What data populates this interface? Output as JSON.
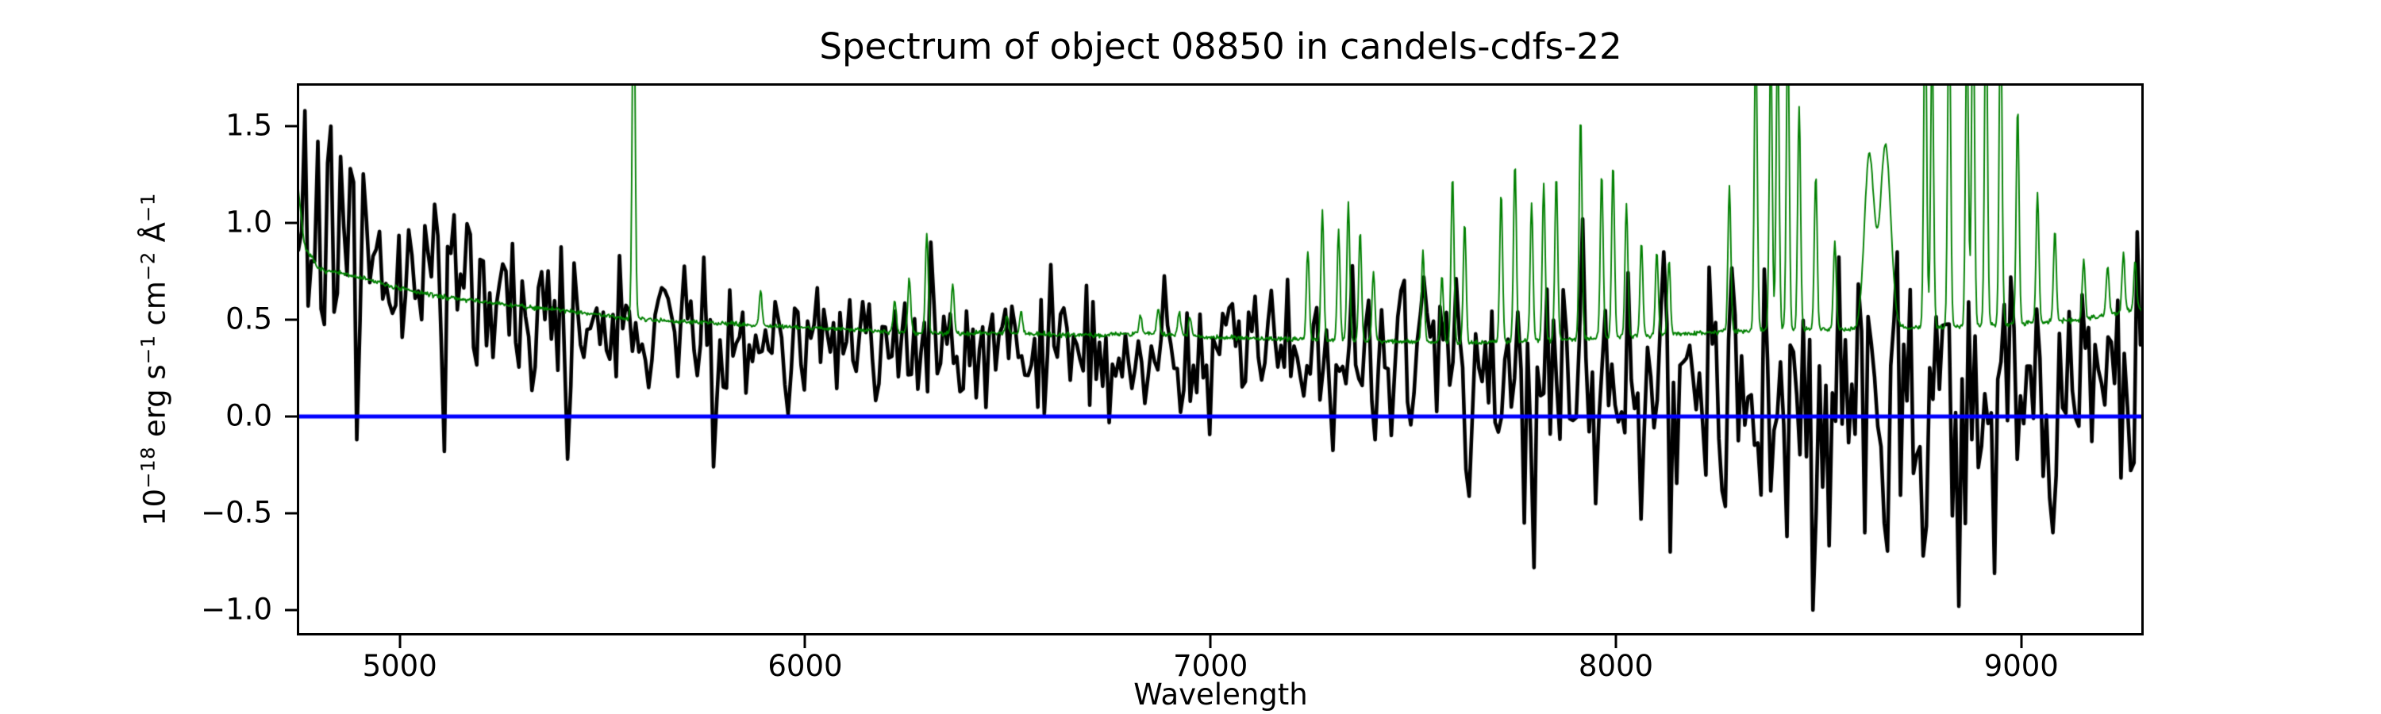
{
  "figure": {
    "background": "#ffffff",
    "title": "Spectrum of object 08850 in candels-cdfs-22"
  },
  "chart_data": {
    "type": "line",
    "title": "Spectrum of object 08850 in candels-cdfs-22",
    "xlabel": "Wavelength",
    "ylabel": "10⁻¹⁸ erg s⁻¹ cm⁻² Å⁻¹",
    "ylabel_parts": [
      {
        "text": "10",
        "sup": false
      },
      {
        "text": "−18",
        "sup": true
      },
      {
        "text": " erg s",
        "sup": false
      },
      {
        "text": "−1",
        "sup": true
      },
      {
        "text": " cm",
        "sup": false
      },
      {
        "text": "−2",
        "sup": true
      },
      {
        "text": " Å",
        "sup": false
      },
      {
        "text": "−1",
        "sup": true
      }
    ],
    "xlim": [
      4750,
      9300
    ],
    "ylim": [
      -1.127,
      1.713
    ],
    "grid": false,
    "legend": null,
    "xticks": [
      {
        "value": 5000,
        "label": "5000"
      },
      {
        "value": 6000,
        "label": "6000"
      },
      {
        "value": 7000,
        "label": "7000"
      },
      {
        "value": 8000,
        "label": "8000"
      },
      {
        "value": 9000,
        "label": "9000"
      }
    ],
    "yticks": [
      {
        "value": -1.0,
        "label": "−1.0"
      },
      {
        "value": -0.5,
        "label": "−0.5"
      },
      {
        "value": 0.0,
        "label": "0.0"
      },
      {
        "value": 0.5,
        "label": "0.5"
      },
      {
        "value": 1.0,
        "label": "1.0"
      },
      {
        "value": 1.5,
        "label": "1.5"
      }
    ],
    "series": [
      {
        "name": "object flux spectrum",
        "style": "noisy-line",
        "color": "#000000",
        "linewidth": 4.6,
        "sample_step": 8,
        "seed": 20,
        "clamp": [
          -1.01,
          1.58
        ],
        "continuum": [
          [
            4750,
            0.85
          ],
          [
            4800,
            0.95
          ],
          [
            4900,
            0.9
          ],
          [
            5000,
            0.78
          ],
          [
            5100,
            0.68
          ],
          [
            5200,
            0.6
          ],
          [
            5350,
            0.53
          ],
          [
            5500,
            0.47
          ],
          [
            5650,
            0.44
          ],
          [
            5800,
            0.42
          ],
          [
            6000,
            0.4
          ],
          [
            6200,
            0.38
          ],
          [
            6400,
            0.37
          ],
          [
            6700,
            0.36
          ],
          [
            7000,
            0.34
          ],
          [
            7200,
            0.33
          ],
          [
            7400,
            0.31
          ],
          [
            7600,
            0.27
          ],
          [
            7800,
            0.24
          ],
          [
            8000,
            0.22
          ],
          [
            8200,
            0.2
          ],
          [
            8400,
            0.15
          ],
          [
            8600,
            0.1
          ],
          [
            8800,
            0.12
          ],
          [
            9000,
            0.15
          ],
          [
            9150,
            0.2
          ],
          [
            9300,
            0.28
          ]
        ],
        "noise_sigma": [
          [
            4750,
            0.26
          ],
          [
            5000,
            0.22
          ],
          [
            5300,
            0.18
          ],
          [
            5600,
            0.16
          ],
          [
            6000,
            0.15
          ],
          [
            6500,
            0.16
          ],
          [
            7000,
            0.17
          ],
          [
            7300,
            0.19
          ],
          [
            7550,
            0.24
          ],
          [
            7800,
            0.3
          ],
          [
            8000,
            0.28
          ],
          [
            8250,
            0.3
          ],
          [
            8500,
            0.36
          ],
          [
            8800,
            0.38
          ],
          [
            9000,
            0.3
          ],
          [
            9300,
            0.26
          ]
        ],
        "features": [
          [
            4766,
            1.58
          ],
          [
            4830,
            1.5
          ],
          [
            4893,
            -0.12
          ],
          [
            5107,
            -0.18
          ],
          [
            5411,
            -0.22
          ],
          [
            5770,
            -0.26
          ],
          [
            6307,
            0.9
          ],
          [
            7770,
            -0.55
          ],
          [
            7798,
            -0.78
          ],
          [
            7920,
            1.02
          ],
          [
            7946,
            -0.45
          ],
          [
            8064,
            -0.53
          ],
          [
            8117,
            0.85
          ],
          [
            8137,
            -0.7
          ],
          [
            8422,
            -0.62
          ],
          [
            8486,
            -1.0
          ],
          [
            8614,
            -0.6
          ],
          [
            8663,
            -0.55
          ],
          [
            8695,
            0.85
          ],
          [
            8758,
            -0.72
          ],
          [
            8843,
            -0.98
          ],
          [
            8934,
            -0.81
          ],
          [
            8975,
            0.72
          ],
          [
            9077,
            -0.6
          ],
          [
            9240,
            0.6
          ]
        ]
      },
      {
        "name": "noise (sky) spectrum",
        "style": "sky-line",
        "color": "#008000",
        "linewidth": 1.9,
        "sample_step": 2,
        "seed": 7,
        "baseline_jitter": 0.006,
        "baseline": [
          [
            4750,
            1.17
          ],
          [
            4765,
            0.88
          ],
          [
            4800,
            0.76
          ],
          [
            4900,
            0.72
          ],
          [
            5000,
            0.66
          ],
          [
            5100,
            0.62
          ],
          [
            5250,
            0.58
          ],
          [
            5400,
            0.55
          ],
          [
            5550,
            0.51
          ],
          [
            5700,
            0.49
          ],
          [
            5900,
            0.47
          ],
          [
            6100,
            0.45
          ],
          [
            6300,
            0.43
          ],
          [
            6500,
            0.43
          ],
          [
            6700,
            0.42
          ],
          [
            6850,
            0.43
          ],
          [
            7000,
            0.41
          ],
          [
            7200,
            0.4
          ],
          [
            7400,
            0.39
          ],
          [
            7600,
            0.38
          ],
          [
            7800,
            0.39
          ],
          [
            8000,
            0.41
          ],
          [
            8200,
            0.43
          ],
          [
            8400,
            0.45
          ],
          [
            8600,
            0.45
          ],
          [
            8800,
            0.46
          ],
          [
            9000,
            0.48
          ],
          [
            9150,
            0.5
          ],
          [
            9300,
            0.56
          ]
        ],
        "sky_lines": [
          [
            5577,
            1.9,
            3.5
          ],
          [
            5890,
            0.18,
            3.5
          ],
          [
            6221,
            0.16,
            3.5
          ],
          [
            6257,
            0.28,
            3.5
          ],
          [
            6300,
            0.52,
            3.5
          ],
          [
            6364,
            0.26,
            3.5
          ],
          [
            6498,
            0.09,
            3.5
          ],
          [
            6533,
            0.12,
            3.5
          ],
          [
            6827,
            0.1,
            3.5
          ],
          [
            6871,
            0.13,
            3.5
          ],
          [
            6923,
            0.12,
            3.5
          ],
          [
            6949,
            0.1,
            3.5
          ],
          [
            7240,
            0.46,
            3.5
          ],
          [
            7276,
            0.66,
            3.5
          ],
          [
            7316,
            0.56,
            3.5
          ],
          [
            7340,
            0.71,
            3.5
          ],
          [
            7369,
            0.56,
            3.5
          ],
          [
            7402,
            0.36,
            3.5
          ],
          [
            7524,
            0.47,
            3.5
          ],
          [
            7571,
            0.35,
            3.5
          ],
          [
            7597,
            0.87,
            3.5
          ],
          [
            7627,
            0.62,
            3.5
          ],
          [
            7717,
            0.77,
            3.5
          ],
          [
            7751,
            0.92,
            3.5
          ],
          [
            7792,
            0.71,
            3.5
          ],
          [
            7822,
            0.81,
            3.5
          ],
          [
            7853,
            0.85,
            3.5
          ],
          [
            7913,
            1.15,
            3.5
          ],
          [
            7965,
            0.85,
            3.5
          ],
          [
            7993,
            0.89,
            3.5
          ],
          [
            8026,
            0.68,
            3.5
          ],
          [
            8063,
            0.48,
            3.5
          ],
          [
            8101,
            0.43,
            3.5
          ],
          [
            8131,
            0.38,
            3.5
          ],
          [
            8280,
            0.75,
            3.5
          ],
          [
            8345,
            1.6,
            3.5
          ],
          [
            8382,
            1.5,
            3.5
          ],
          [
            8399,
            1.6,
            3.5
          ],
          [
            8424,
            1.6,
            3.5
          ],
          [
            8452,
            1.15,
            3.5
          ],
          [
            8493,
            0.8,
            3.5
          ],
          [
            8540,
            0.45,
            3.5
          ],
          [
            8625,
            0.9,
            12
          ],
          [
            8665,
            0.95,
            13
          ],
          [
            8763,
            1.8,
            3.5
          ],
          [
            8780,
            1.5,
            3.5
          ],
          [
            8822,
            1.8,
            3.5
          ],
          [
            8866,
            1.6,
            3.5
          ],
          [
            8881,
            1.8,
            3.5
          ],
          [
            8913,
            1.8,
            3.5
          ],
          [
            8949,
            1.7,
            3.5
          ],
          [
            8991,
            1.12,
            3.5
          ],
          [
            9040,
            0.67,
            3.5
          ],
          [
            9083,
            0.47,
            3.5
          ],
          [
            9154,
            0.31,
            3.5
          ],
          [
            9213,
            0.25,
            3.5
          ],
          [
            9252,
            0.3,
            3.5
          ],
          [
            9281,
            0.25,
            3.5
          ]
        ]
      },
      {
        "name": "zero flux level",
        "style": "hline",
        "color": "#0000ff",
        "linewidth": 5.2,
        "y": 0.0
      }
    ]
  }
}
